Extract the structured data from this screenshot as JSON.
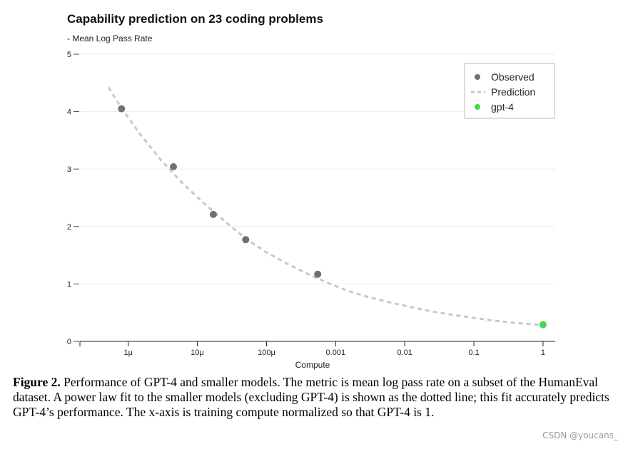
{
  "chart_data": {
    "type": "scatter",
    "title": "Capability prediction on 23 coding problems",
    "subtitle": "- Mean Log Pass Rate",
    "xlabel": "Compute",
    "x_scale": "log",
    "xlim": [
      2e-07,
      1.5
    ],
    "ylim": [
      0,
      5
    ],
    "y_ticks": [
      0,
      1,
      2,
      3,
      4,
      5
    ],
    "x_ticks": [
      {
        "value": 1e-06,
        "label": "1μ"
      },
      {
        "value": 1e-05,
        "label": "10μ"
      },
      {
        "value": 0.0001,
        "label": "100μ"
      },
      {
        "value": 0.001,
        "label": "0.001"
      },
      {
        "value": 0.01,
        "label": "0.01"
      },
      {
        "value": 0.1,
        "label": "0.1"
      },
      {
        "value": 1,
        "label": "1"
      }
    ],
    "grid": true,
    "legend_position": "top-right",
    "series": [
      {
        "name": "Observed",
        "kind": "scatter",
        "color": "#707070",
        "x": [
          8e-07,
          4.5e-06,
          1.7e-05,
          5e-05,
          0.00055
        ],
        "y": [
          4.05,
          3.04,
          2.21,
          1.77,
          1.17
        ]
      },
      {
        "name": "Prediction",
        "kind": "line",
        "style": "dashed",
        "color": "#c8c8c8",
        "x": [
          5.2e-07,
          8e-07,
          1.5e-06,
          3e-06,
          6e-06,
          1.2e-05,
          2.5e-05,
          5e-05,
          0.0001,
          0.0002,
          0.0004,
          0.0008,
          0.0015,
          0.003,
          0.006,
          0.012,
          0.025,
          0.05,
          0.1,
          0.2,
          0.4,
          0.7,
          1.0,
          1.15
        ],
        "y": [
          4.42,
          4.06,
          3.6,
          3.15,
          2.76,
          2.42,
          2.09,
          1.79,
          1.55,
          1.35,
          1.17,
          1.01,
          0.88,
          0.77,
          0.68,
          0.6,
          0.52,
          0.46,
          0.41,
          0.36,
          0.32,
          0.3,
          0.28,
          0.26
        ]
      },
      {
        "name": "gpt-4",
        "kind": "scatter",
        "color": "#4cd44c",
        "x": [
          1.0
        ],
        "y": [
          0.29
        ]
      }
    ]
  },
  "caption": {
    "label": "Figure 2.",
    "text": " Performance of GPT-4 and smaller models. The metric is mean log pass rate on a subset of the HumanEval dataset. A power law fit to the smaller models (excluding GPT-4) is shown as the dotted line; this fit accurately predicts GPT-4’s performance. The x-axis is training compute normalized so that GPT-4 is 1."
  },
  "watermark": "CSDN @youcans_"
}
